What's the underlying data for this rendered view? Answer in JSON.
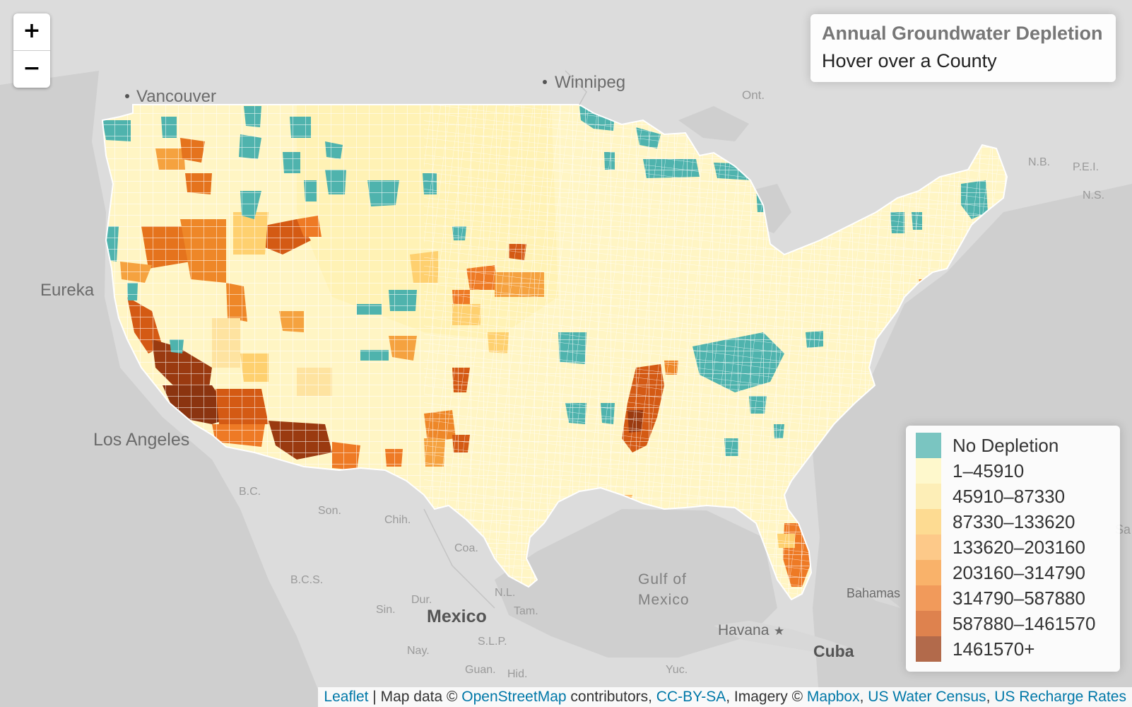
{
  "zoom": {
    "in_label": "+",
    "out_label": "−"
  },
  "info": {
    "title": "Annual Groundwater Depletion",
    "subtitle": "Hover over a County"
  },
  "legend": {
    "items": [
      {
        "label": "No Depletion",
        "color": "#4fb3ad"
      },
      {
        "label": "1–45910",
        "color": "#fff7bc"
      },
      {
        "label": "45910–87330",
        "color": "#fee9a0"
      },
      {
        "label": "87330–133620",
        "color": "#fed06f"
      },
      {
        "label": "133620–203160",
        "color": "#fdb863"
      },
      {
        "label": "203160–314790",
        "color": "#f89a3a"
      },
      {
        "label": "314790–587880",
        "color": "#ee7a25"
      },
      {
        "label": "587880–1461570",
        "color": "#d45a14"
      },
      {
        "label": "1461570+",
        "color": "#9a3a10"
      }
    ]
  },
  "places": [
    {
      "name": "Vancouver",
      "dot": true
    },
    {
      "name": "Winnipeg",
      "dot": true
    },
    {
      "name": "Eureka"
    },
    {
      "name": "Los Angeles"
    },
    {
      "name": "Ont."
    },
    {
      "name": "N.B."
    },
    {
      "name": "P.E.I."
    },
    {
      "name": "N.S."
    },
    {
      "name": "B.C."
    },
    {
      "name": "Son."
    },
    {
      "name": "Chih."
    },
    {
      "name": "Coa."
    },
    {
      "name": "B.C.S."
    },
    {
      "name": "Dur."
    },
    {
      "name": "Sin."
    },
    {
      "name": "N.L."
    },
    {
      "name": "Tam."
    },
    {
      "name": "Mexico"
    },
    {
      "name": "S.L.P."
    },
    {
      "name": "Nay."
    },
    {
      "name": "Guan."
    },
    {
      "name": "Hid."
    },
    {
      "name": "Yuc."
    },
    {
      "name": "Gulf of"
    },
    {
      "name": "Mexico"
    },
    {
      "name": "Havana"
    },
    {
      "name": "Cuba"
    },
    {
      "name": "Bahamas"
    },
    {
      "name": "Sa"
    }
  ],
  "attribution": {
    "leaflet": "Leaflet",
    "sep1": " | Map data © ",
    "osm": "OpenStreetMap",
    "sep2": " contributors, ",
    "license": "CC-BY-SA",
    "sep3": ", Imagery © ",
    "mapbox": "Mapbox",
    "sep4": ", ",
    "census": "US Water Census",
    "sep5": ", ",
    "recharge": "US Recharge Rates"
  }
}
